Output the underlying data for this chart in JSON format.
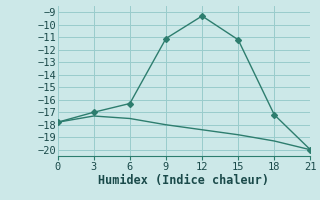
{
  "line1_x": [
    0,
    3,
    6,
    9,
    12,
    15,
    18,
    21
  ],
  "line1_y": [
    -17.8,
    -17.0,
    -16.3,
    -11.1,
    -9.3,
    -11.2,
    -17.2,
    -20.0
  ],
  "line2_x": [
    0,
    3,
    6,
    9,
    12,
    15,
    18,
    21
  ],
  "line2_y": [
    -17.8,
    -17.3,
    -17.5,
    -18.0,
    -18.4,
    -18.8,
    -19.3,
    -20.0
  ],
  "line_color": "#2d7d6e",
  "bg_color": "#cce8e8",
  "grid_color": "#99cccc",
  "xlabel": "Humidex (Indice chaleur)",
  "xlim": [
    0,
    21
  ],
  "ylim": [
    -20.5,
    -8.5
  ],
  "xticks": [
    0,
    3,
    6,
    9,
    12,
    15,
    18,
    21
  ],
  "yticks": [
    -9,
    -10,
    -11,
    -12,
    -13,
    -14,
    -15,
    -16,
    -17,
    -18,
    -19,
    -20
  ],
  "marker": "D",
  "marker_size": 3,
  "line_width": 1.0,
  "tick_fontsize": 7.5,
  "label_fontsize": 8.5
}
